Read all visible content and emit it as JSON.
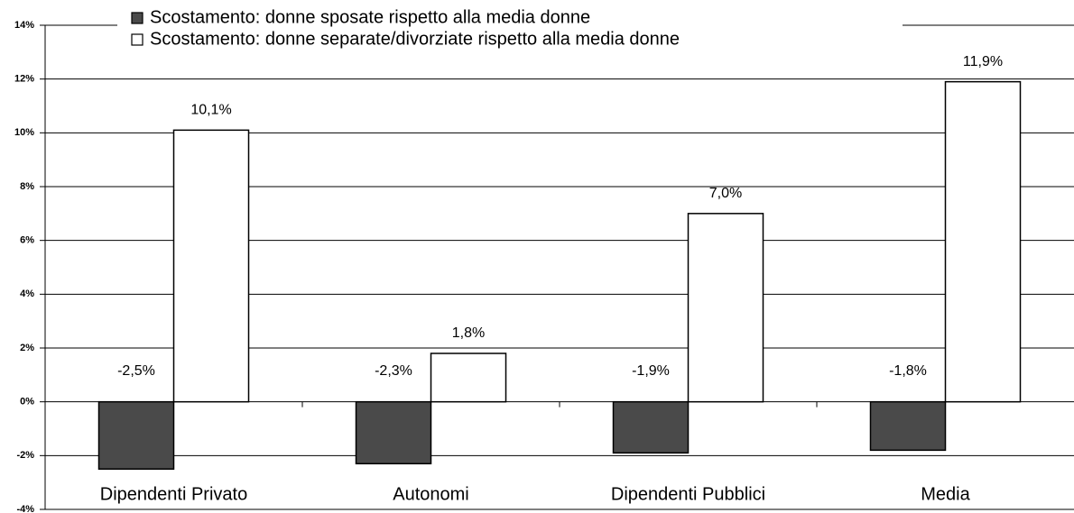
{
  "chart_data": {
    "type": "bar",
    "categories": [
      "Dipendenti Privato",
      "Autonomi",
      "Dipendenti Pubblici",
      "Media"
    ],
    "series": [
      {
        "name": "Scostamento: donne sposate rispetto alla media donne",
        "color": "#4a4a4a",
        "values": [
          -2.5,
          -2.3,
          -1.9,
          -1.8
        ],
        "value_labels": [
          "-2,5%",
          "-2,3%",
          "-1,9%",
          "-1,8%"
        ]
      },
      {
        "name": "Scostamento: donne separate/divorziate rispetto alla media donne",
        "color": "#ffffff",
        "values": [
          10.1,
          1.8,
          7.0,
          11.9
        ],
        "value_labels": [
          "10,1%",
          "1,8%",
          "7,0%",
          "11,9%"
        ]
      }
    ],
    "ylim": [
      -4,
      14
    ],
    "yticks": [
      {
        "value": -4,
        "label": "-4%"
      },
      {
        "value": -2,
        "label": "-2%"
      },
      {
        "value": 0,
        "label": "0%"
      },
      {
        "value": 2,
        "label": "2%"
      },
      {
        "value": 4,
        "label": "4%"
      },
      {
        "value": 6,
        "label": "6%"
      },
      {
        "value": 8,
        "label": "8%"
      },
      {
        "value": 10,
        "label": "10%"
      },
      {
        "value": 12,
        "label": "12%"
      },
      {
        "value": 14,
        "label": "14%"
      }
    ],
    "grid": true,
    "legend": "top"
  }
}
